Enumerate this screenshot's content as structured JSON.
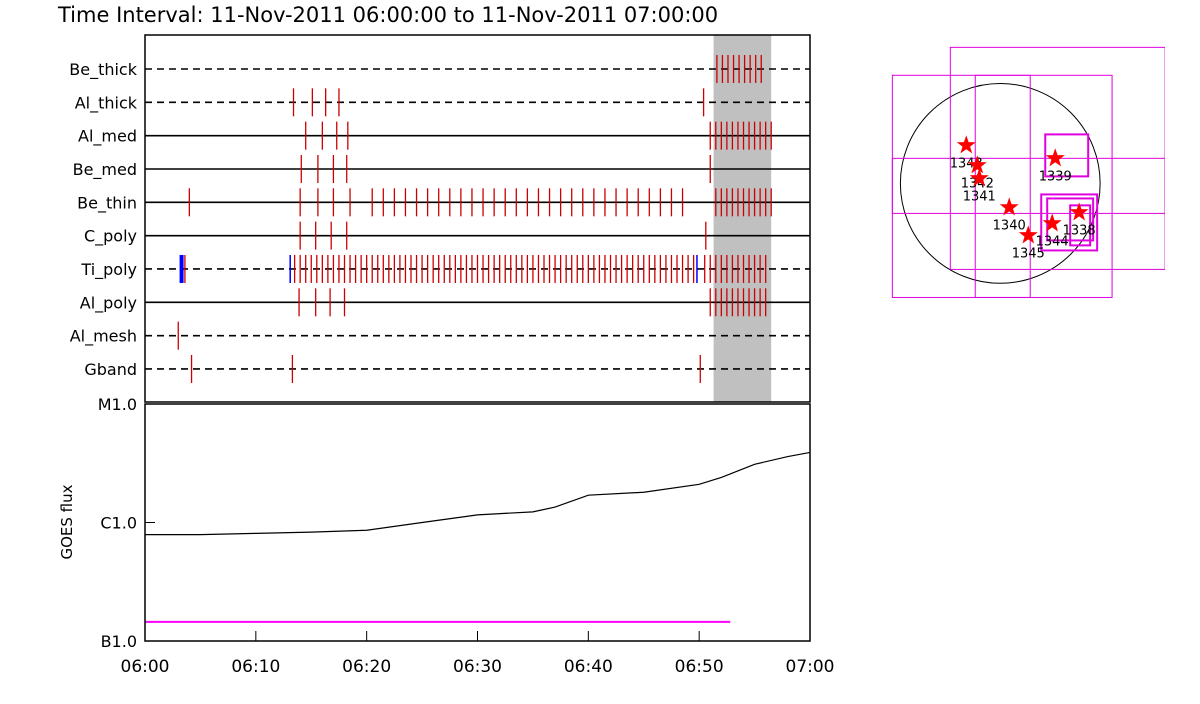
{
  "chart_data": [
    {
      "type": "timeline",
      "title": "Time Interval: 11-Nov-2011 06:00:00 to 11-Nov-2011 07:00:00",
      "xlim": [
        0,
        60
      ],
      "shade": [
        51.3,
        56.5
      ],
      "color": "#cc0000",
      "alt_color": "#0000ff",
      "rows": [
        {
          "name": "Be_thick",
          "style": "dashed",
          "values": [
            51.6,
            52.1,
            52.6,
            53.1,
            53.6,
            54.1,
            54.6,
            55.1,
            55.6
          ]
        },
        {
          "name": "Al_thick",
          "style": "dashed",
          "values": [
            13.4,
            15.1,
            16.3,
            17.5,
            50.4
          ]
        },
        {
          "name": "Al_med",
          "style": "solid",
          "values": [
            14.5,
            16.0,
            17.3,
            18.3,
            51.0,
            51.5,
            52.0,
            52.5,
            53.0,
            53.5,
            54.0,
            54.5,
            55.0,
            55.5,
            56.0,
            56.5
          ]
        },
        {
          "name": "Be_med",
          "style": "solid",
          "values": [
            14.1,
            15.6,
            17.0,
            18.2,
            51.0
          ]
        },
        {
          "name": "Be_thin",
          "style": "solid",
          "values": [
            4.0,
            14.0,
            15.6,
            17.0,
            18.5,
            20.5,
            21.5,
            22.5,
            23.5,
            24.5,
            25.5,
            26.5,
            27.5,
            28.5,
            29.5,
            30.5,
            31.5,
            32.5,
            33.5,
            34.5,
            35.5,
            36.5,
            37.5,
            38.5,
            39.5,
            40.5,
            41.5,
            42.5,
            43.5,
            44.5,
            45.5,
            46.5,
            47.5,
            48.5,
            51.5,
            52.0,
            52.5,
            53.0,
            53.5,
            54.0,
            54.5,
            55.0,
            55.5,
            56.0,
            56.5
          ]
        },
        {
          "name": "C_poly",
          "style": "solid",
          "values": [
            14.0,
            15.4,
            16.8,
            18.2,
            50.6
          ]
        },
        {
          "name": "Ti_poly",
          "style": "dashed",
          "values": [
            3.6,
            13.5,
            14.0,
            14.5,
            15.0,
            15.5,
            16.0,
            16.5,
            17.0,
            17.5,
            18.0,
            18.5,
            19.0,
            19.5,
            20.0,
            20.5,
            21.0,
            21.5,
            22.0,
            22.5,
            23.0,
            23.5,
            24.0,
            24.5,
            25.0,
            25.5,
            26.0,
            26.5,
            27.0,
            27.5,
            28.0,
            28.5,
            29.0,
            29.5,
            30.0,
            30.5,
            31.0,
            31.5,
            32.0,
            32.5,
            33.0,
            33.5,
            34.0,
            34.5,
            35.0,
            35.5,
            36.0,
            36.5,
            37.0,
            37.5,
            38.0,
            38.5,
            39.0,
            39.5,
            40.0,
            40.5,
            41.0,
            41.5,
            42.0,
            42.5,
            43.0,
            43.5,
            44.0,
            44.5,
            45.0,
            45.5,
            46.0,
            46.5,
            47.0,
            47.5,
            48.0,
            48.5,
            49.0,
            49.5,
            50.5,
            51.0,
            51.5,
            52.0,
            52.5,
            53.0,
            53.5,
            54.0,
            54.5,
            55.0,
            55.5,
            56.0
          ],
          "alt_values": [
            3.3,
            13.1,
            49.8
          ]
        },
        {
          "name": "Al_poly",
          "style": "solid",
          "values": [
            13.9,
            15.4,
            16.7,
            18.0,
            51.0,
            51.5,
            52.0,
            52.5,
            53.0,
            53.5,
            54.0,
            54.5,
            55.0,
            55.5,
            56.0
          ]
        },
        {
          "name": "Al_mesh",
          "style": "dashed",
          "values": [
            3.0
          ]
        },
        {
          "name": "Gband",
          "style": "dashed",
          "values": [
            4.2,
            13.3,
            50.1
          ]
        }
      ]
    },
    {
      "type": "line",
      "y_label": "GOES flux",
      "ylog": true,
      "xlim": [
        0,
        60
      ],
      "xticks": [
        {
          "value": 0,
          "label": "06:00"
        },
        {
          "value": 10,
          "label": "06:10"
        },
        {
          "value": 20,
          "label": "06:20"
        },
        {
          "value": 30,
          "label": "06:30"
        },
        {
          "value": 40,
          "label": "06:40"
        },
        {
          "value": 50,
          "label": "06:50"
        },
        {
          "value": 60,
          "label": "07:00"
        }
      ],
      "ylim": [
        1e-07,
        1e-05
      ],
      "yticks": [
        {
          "value": 1e-07,
          "label": "B1.0"
        },
        {
          "value": 1e-06,
          "label": "C1.0"
        },
        {
          "value": 1e-05,
          "label": "M1.0"
        }
      ],
      "series": [
        {
          "color": "#000000",
          "x": [
            0,
            5,
            10,
            15,
            20,
            25,
            30,
            35,
            37,
            40,
            45,
            50,
            52,
            55,
            58,
            60
          ],
          "values": [
            7.9e-07,
            7.9e-07,
            8.1e-07,
            8.3e-07,
            8.6e-07,
            1e-06,
            1.16e-06,
            1.23e-06,
            1.35e-06,
            1.7e-06,
            1.8e-06,
            2.1e-06,
            2.4e-06,
            3.1e-06,
            3.6e-06,
            3.9e-06
          ]
        },
        {
          "color": "#ff00ff",
          "x": [
            0,
            52.8
          ],
          "values": [
            1.45e-07,
            1.45e-07
          ]
        }
      ]
    },
    {
      "type": "map",
      "xlim": [
        -1100,
        1600
      ],
      "ylim": [
        -1150,
        1400
      ],
      "disk_radius": 970,
      "box_color": "#e000e0",
      "color": "#ff0000",
      "boxes": [
        [
          -1048,
          -1106,
          1086,
          1048
        ],
        [
          -485,
          -834,
          1601,
          1319
        ],
        [
          -243,
          -1106,
          291,
          1048
        ],
        [
          -1048,
          -291,
          1601,
          243
        ],
        [
          437,
          68,
          854,
          475
        ],
        [
          398,
          -650,
          941,
          -107
        ],
        [
          456,
          -553,
          902,
          -146
        ],
        [
          679,
          -601,
          873,
          -213
        ]
      ],
      "points": [
        {
          "name": "1343",
          "x": -330,
          "y": 369
        },
        {
          "name": "1342",
          "x": -223,
          "y": 175
        },
        {
          "name": "1341",
          "x": -204,
          "y": 49
        },
        {
          "name": "1340",
          "x": 87,
          "y": -233
        },
        {
          "name": "1345",
          "x": 272,
          "y": -504
        },
        {
          "name": "1344",
          "x": 504,
          "y": -388
        },
        {
          "name": "1338",
          "x": 766,
          "y": -281
        },
        {
          "name": "1339",
          "x": 534,
          "y": 243
        }
      ]
    }
  ]
}
